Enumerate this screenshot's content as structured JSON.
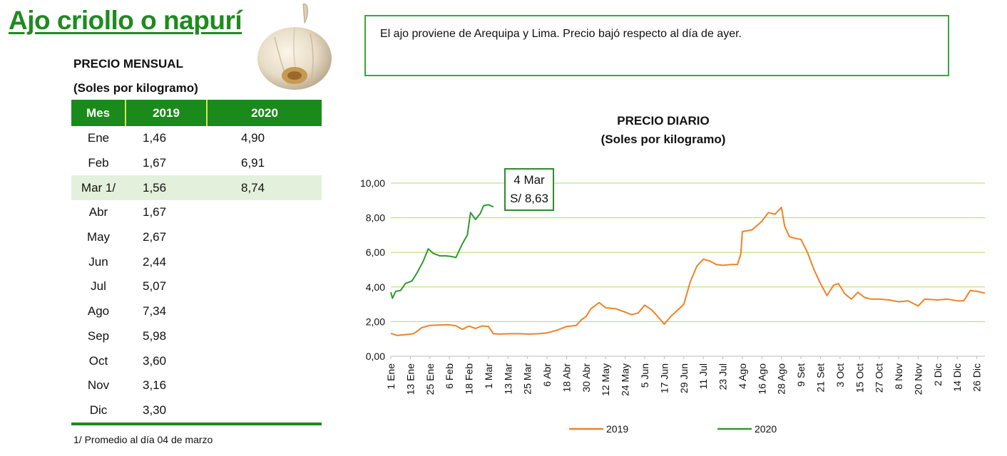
{
  "title": "Ajo criollo o napurí",
  "info_text": "El ajo proviene de Arequipa y Lima. Precio bajó respecto al día de ayer.",
  "monthly": {
    "heading": "PRECIO MENSUAL",
    "unit": "(Soles por kilogramo)",
    "columns": [
      "Mes",
      "2019",
      "2020"
    ],
    "rows": [
      {
        "mes": "Ene",
        "y2019": "1,46",
        "y2020": "4,90"
      },
      {
        "mes": "Feb",
        "y2019": "1,67",
        "y2020": "6,91"
      },
      {
        "mes": "Mar 1/",
        "y2019": "1,56",
        "y2020": "8,74"
      },
      {
        "mes": "Abr",
        "y2019": "1,67",
        "y2020": ""
      },
      {
        "mes": "May",
        "y2019": "2,67",
        "y2020": ""
      },
      {
        "mes": "Jun",
        "y2019": "2,44",
        "y2020": ""
      },
      {
        "mes": "Jul",
        "y2019": "5,07",
        "y2020": ""
      },
      {
        "mes": "Ago",
        "y2019": "7,34",
        "y2020": ""
      },
      {
        "mes": "Sep",
        "y2019": "5,98",
        "y2020": ""
      },
      {
        "mes": "Oct",
        "y2019": "3,60",
        "y2020": ""
      },
      {
        "mes": "Nov",
        "y2019": "3,16",
        "y2020": ""
      },
      {
        "mes": "Dic",
        "y2019": "3,30",
        "y2020": ""
      }
    ],
    "footnote": "1/ Promedio al día 04 de marzo"
  },
  "chart_data": {
    "type": "line",
    "title": "PRECIO DIARIO",
    "subtitle": "(Soles por kilogramo)",
    "ylim": [
      0,
      10
    ],
    "yticks": [
      "0,00",
      "2,00",
      "4,00",
      "6,00",
      "8,00",
      "10,00"
    ],
    "xlim": [
      "2020-01-01",
      "2020-12-31"
    ],
    "xtick_labels": [
      "1 Ene",
      "13 Ene",
      "25 Ene",
      "6 Feb",
      "18 Feb",
      "1 Mar",
      "13 Mar",
      "25 Mar",
      "6 Abr",
      "18 Abr",
      "30 Abr",
      "12 May",
      "24 May",
      "5 Jun",
      "17 Jun",
      "29 Jun",
      "11 Jul",
      "23 Jul",
      "4 Ago",
      "16 Ago",
      "28 Ago",
      "9 Set",
      "21 Set",
      "3 Oct",
      "15 Oct",
      "27 Oct",
      "8 Nov",
      "20 Nov",
      "2 Dic",
      "14 Dic",
      "26 Dic"
    ],
    "grid": true,
    "legend_position": "bottom",
    "annotation": {
      "label_line1": "4 Mar",
      "label_line2": "S/ 8,63",
      "series": "2020",
      "x": "2020-03-04",
      "y": 8.63
    },
    "series": [
      {
        "name": "2019",
        "color": "#f08228",
        "x": [
          "2020-01-01",
          "2020-01-05",
          "2020-01-10",
          "2020-01-15",
          "2020-01-20",
          "2020-01-25",
          "2020-01-30",
          "2020-02-05",
          "2020-02-10",
          "2020-02-14",
          "2020-02-18",
          "2020-02-22",
          "2020-02-26",
          "2020-03-01",
          "2020-03-04",
          "2020-03-08",
          "2020-03-14",
          "2020-03-20",
          "2020-03-26",
          "2020-04-01",
          "2020-04-06",
          "2020-04-12",
          "2020-04-18",
          "2020-04-24",
          "2020-04-27",
          "2020-04-30",
          "2020-05-03",
          "2020-05-08",
          "2020-05-12",
          "2020-05-18",
          "2020-05-24",
          "2020-05-28",
          "2020-06-01",
          "2020-06-05",
          "2020-06-09",
          "2020-06-13",
          "2020-06-17",
          "2020-06-21",
          "2020-06-25",
          "2020-06-29",
          "2020-07-03",
          "2020-07-07",
          "2020-07-11",
          "2020-07-15",
          "2020-07-19",
          "2020-07-23",
          "2020-07-28",
          "2020-08-01",
          "2020-08-03",
          "2020-08-04",
          "2020-08-10",
          "2020-08-16",
          "2020-08-20",
          "2020-08-24",
          "2020-08-28",
          "2020-08-30",
          "2020-09-02",
          "2020-09-06",
          "2020-09-09",
          "2020-09-13",
          "2020-09-17",
          "2020-09-21",
          "2020-09-25",
          "2020-09-29",
          "2020-10-02",
          "2020-10-06",
          "2020-10-10",
          "2020-10-14",
          "2020-10-18",
          "2020-10-22",
          "2020-10-27",
          "2020-11-02",
          "2020-11-08",
          "2020-11-14",
          "2020-11-20",
          "2020-11-24",
          "2020-12-02",
          "2020-12-08",
          "2020-12-14",
          "2020-12-18",
          "2020-12-22",
          "2020-12-26",
          "2020-12-31"
        ],
        "y": [
          1.32,
          1.2,
          1.25,
          1.3,
          1.65,
          1.78,
          1.8,
          1.82,
          1.76,
          1.55,
          1.75,
          1.6,
          1.75,
          1.72,
          1.3,
          1.28,
          1.3,
          1.3,
          1.28,
          1.3,
          1.35,
          1.5,
          1.72,
          1.78,
          2.1,
          2.3,
          2.75,
          3.1,
          2.8,
          2.75,
          2.55,
          2.4,
          2.5,
          2.95,
          2.7,
          2.3,
          1.85,
          2.3,
          2.65,
          3.0,
          4.3,
          5.2,
          5.6,
          5.5,
          5.3,
          5.25,
          5.3,
          5.3,
          5.9,
          7.2,
          7.3,
          7.8,
          8.3,
          8.2,
          8.6,
          7.5,
          6.9,
          6.8,
          6.75,
          6.0,
          5.0,
          4.2,
          3.5,
          4.1,
          4.2,
          3.6,
          3.3,
          3.7,
          3.4,
          3.3,
          3.3,
          3.25,
          3.15,
          3.2,
          2.9,
          3.3,
          3.25,
          3.3,
          3.2,
          3.2,
          3.8,
          3.75,
          3.65
        ]
      },
      {
        "name": "2020",
        "color": "#2e9a2e",
        "x": [
          "2020-01-01",
          "2020-01-02",
          "2020-01-04",
          "2020-01-07",
          "2020-01-10",
          "2020-01-14",
          "2020-01-17",
          "2020-01-21",
          "2020-01-24",
          "2020-01-27",
          "2020-01-31",
          "2020-02-04",
          "2020-02-08",
          "2020-02-10",
          "2020-02-14",
          "2020-02-17",
          "2020-02-19",
          "2020-02-22",
          "2020-02-25",
          "2020-02-27",
          "2020-03-01",
          "2020-03-04"
        ],
        "y": [
          3.7,
          3.35,
          3.75,
          3.8,
          4.2,
          4.35,
          4.8,
          5.5,
          6.2,
          5.95,
          5.8,
          5.8,
          5.75,
          5.7,
          6.5,
          7.0,
          8.3,
          7.9,
          8.25,
          8.7,
          8.75,
          8.63
        ]
      }
    ]
  }
}
